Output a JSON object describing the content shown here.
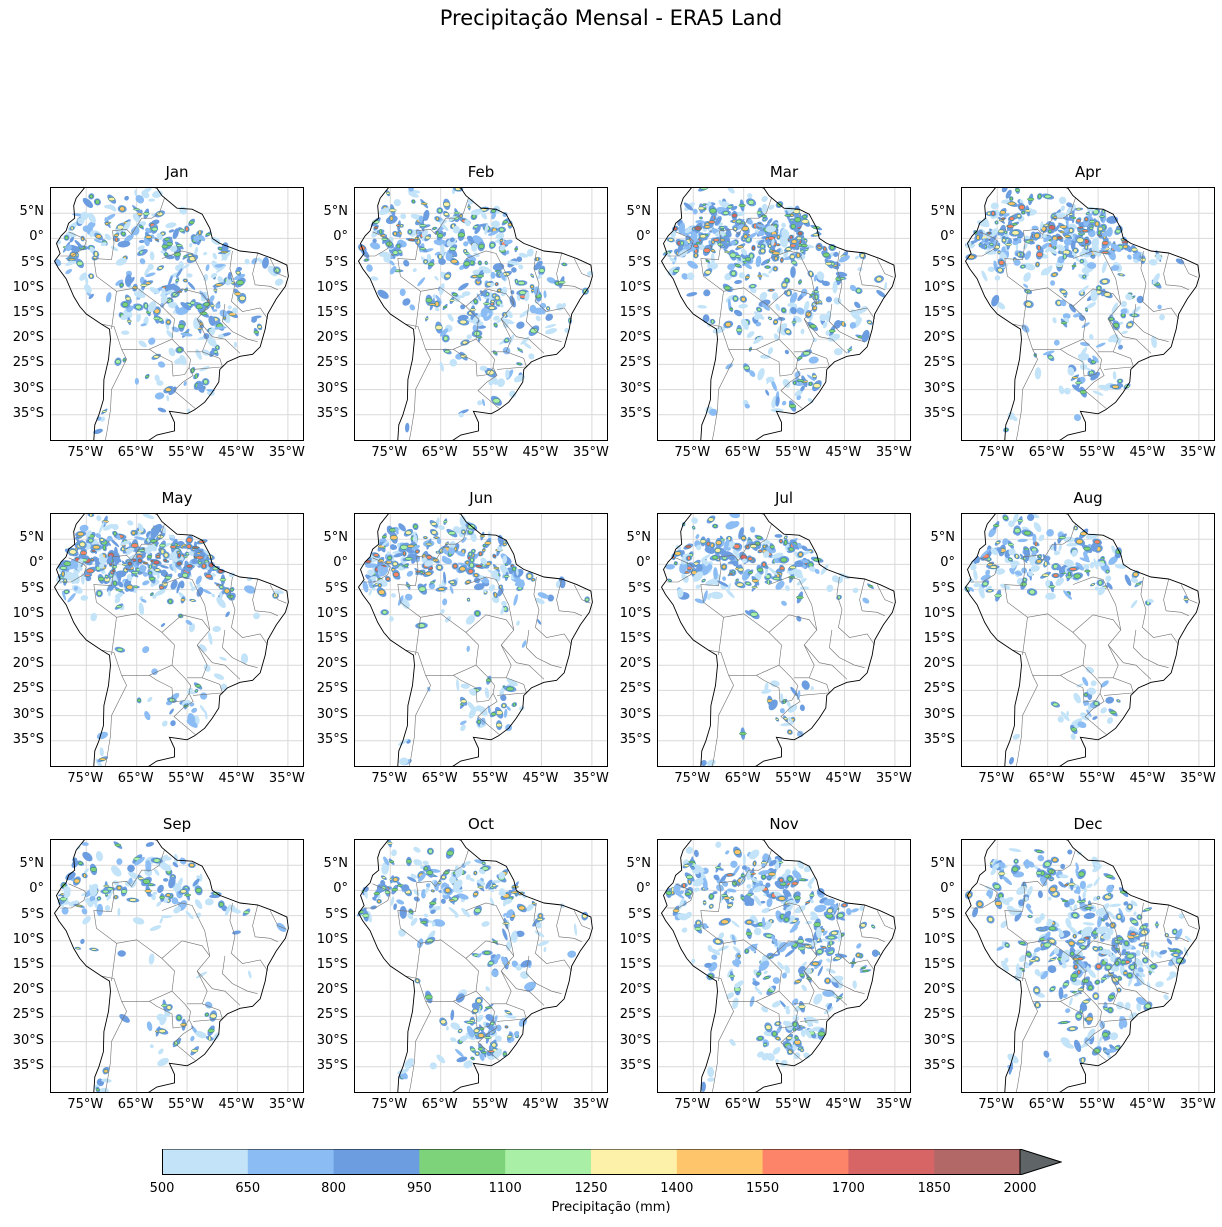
{
  "title": "Precipitação Mensal - ERA5 Land",
  "panels": [
    {
      "month": "Jan",
      "intensity": 0.65,
      "north": 0.55,
      "south": 0.45,
      "center": 0.65
    },
    {
      "month": "Feb",
      "intensity": 0.65,
      "north": 0.75,
      "south": 0.3,
      "center": 0.55
    },
    {
      "month": "Mar",
      "intensity": 0.85,
      "north": 0.95,
      "south": 0.35,
      "center": 0.45
    },
    {
      "month": "Apr",
      "intensity": 0.7,
      "north": 0.9,
      "south": 0.35,
      "center": 0.25
    },
    {
      "month": "May",
      "intensity": 0.75,
      "north": 0.95,
      "south": 0.35,
      "center": 0.05
    },
    {
      "month": "Jun",
      "intensity": 0.55,
      "north": 0.8,
      "south": 0.35,
      "center": 0.02
    },
    {
      "month": "Jul",
      "intensity": 0.45,
      "north": 0.7,
      "south": 0.3,
      "center": 0.0
    },
    {
      "month": "Aug",
      "intensity": 0.4,
      "north": 0.55,
      "south": 0.3,
      "center": 0.0
    },
    {
      "month": "Sep",
      "intensity": 0.4,
      "north": 0.4,
      "south": 0.45,
      "center": 0.02
    },
    {
      "month": "Oct",
      "intensity": 0.5,
      "north": 0.45,
      "south": 0.6,
      "center": 0.15
    },
    {
      "month": "Nov",
      "intensity": 0.7,
      "north": 0.55,
      "south": 0.55,
      "center": 0.55
    },
    {
      "month": "Dec",
      "intensity": 0.75,
      "north": 0.45,
      "south": 0.45,
      "center": 0.75
    }
  ],
  "lat_labels": [
    "5°N",
    "0°",
    "5°S",
    "10°S",
    "15°S",
    "20°S",
    "25°S",
    "30°S",
    "35°S"
  ],
  "lon_labels": [
    "75°W",
    "65°W",
    "55°W",
    "45°W",
    "35°W"
  ],
  "map_extent": {
    "lon": [
      -82,
      -32
    ],
    "lat": [
      -40,
      10
    ]
  },
  "colorbar": {
    "label": "Precipitação (mm)",
    "ticks": [
      "500",
      "650",
      "800",
      "950",
      "1100",
      "1250",
      "1400",
      "1550",
      "1700",
      "1850",
      "2000"
    ],
    "colors": [
      "#c2e3f8",
      "#8bbcf3",
      "#6b9de0",
      "#7dd37a",
      "#a9f0a6",
      "#fdf0a9",
      "#fec56a",
      "#fd8468",
      "#d76565",
      "#b36868"
    ],
    "extend_color": "#5f6566",
    "extend": "max"
  }
}
